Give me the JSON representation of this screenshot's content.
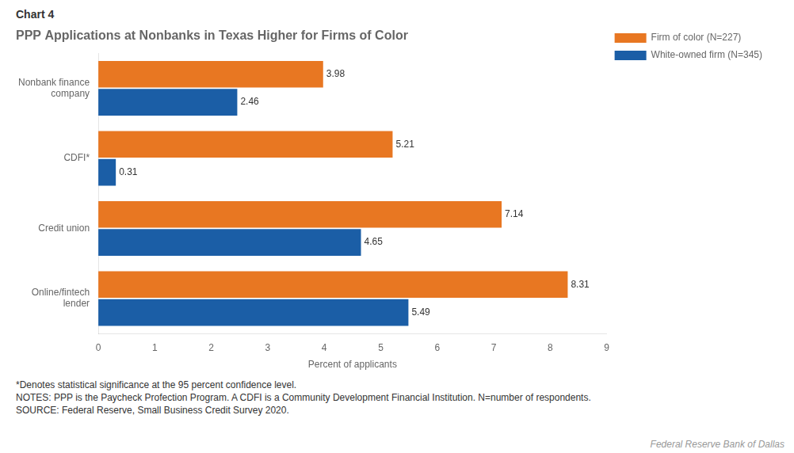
{
  "chart_data": {
    "type": "bar",
    "orientation": "horizontal",
    "title": "PPP Applications at Nonbanks in Texas Higher for Firms of Color",
    "categories": [
      "Nonbank finance\ncompany",
      "CDFI*",
      "Credit union",
      "Online/fintech\nlender"
    ],
    "series": [
      {
        "name": "Firm of color (N=227)",
        "color": "#E87722",
        "values": [
          3.98,
          5.21,
          7.14,
          8.31
        ]
      },
      {
        "name": "White-owned firm (N=345)",
        "color": "#1B5EA6",
        "values": [
          2.46,
          0.31,
          4.65,
          5.49
        ]
      }
    ],
    "xlabel": "Percent of applicants",
    "xlim": [
      0,
      9
    ],
    "xticks": [
      0,
      1,
      2,
      3,
      4,
      5,
      6,
      7,
      8,
      9
    ],
    "data_labels": true,
    "grid": false,
    "legend": "upper right",
    "annotations": [
      "Chart 4",
      "*Denotes statistical significance at the 95 percent confidence level.",
      "NOTES: PPP is the Paycheck Profection Program. A CDFI is a Community Development Financial Institution.  N=number of respondents.",
      "SOURCE: Federal Reserve, Small Business Credit Survey 2020.",
      "Federal Reserve Bank of Dallas"
    ]
  }
}
